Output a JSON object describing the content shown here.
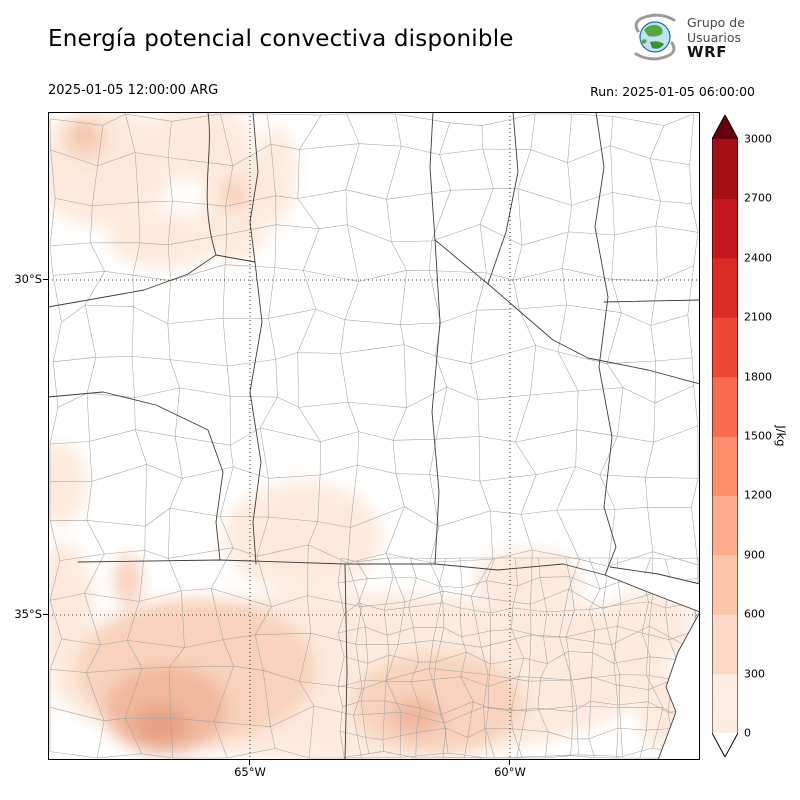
{
  "header": {
    "title": "Energía potencial convectiva disponible",
    "valid_time": "2025-01-05 12:00:00 ARG",
    "run_label": "Run: 2025-01-05 06:00:00"
  },
  "logo": {
    "line1": "Grupo de",
    "line2": "Usuarios",
    "line3": "WRF"
  },
  "axes": {
    "y_ticks": [
      "30°S",
      "35°S"
    ],
    "x_ticks": [
      "65°W",
      "60°W"
    ]
  },
  "colorbar": {
    "units_label": "J/kg",
    "tick_labels": [
      "0",
      "300",
      "600",
      "900",
      "1200",
      "1500",
      "1800",
      "2100",
      "2400",
      "2700",
      "3000"
    ],
    "segment_colors_bottom_to_top": [
      "#fdece1",
      "#fdd9c5",
      "#fcc4a8",
      "#fcab8c",
      "#fc8e6e",
      "#fa6a4c",
      "#ef4837",
      "#dc2b25",
      "#c5161c",
      "#a50f15"
    ],
    "under_range_color": "#ffffff",
    "over_range_color": "#67000d"
  },
  "map_shading": {
    "levels": {
      "lv1": "#fdeadd",
      "lv2": "#f8d2bc",
      "lv3": "#f0b89d",
      "lv4": "#e7a286"
    }
  }
}
